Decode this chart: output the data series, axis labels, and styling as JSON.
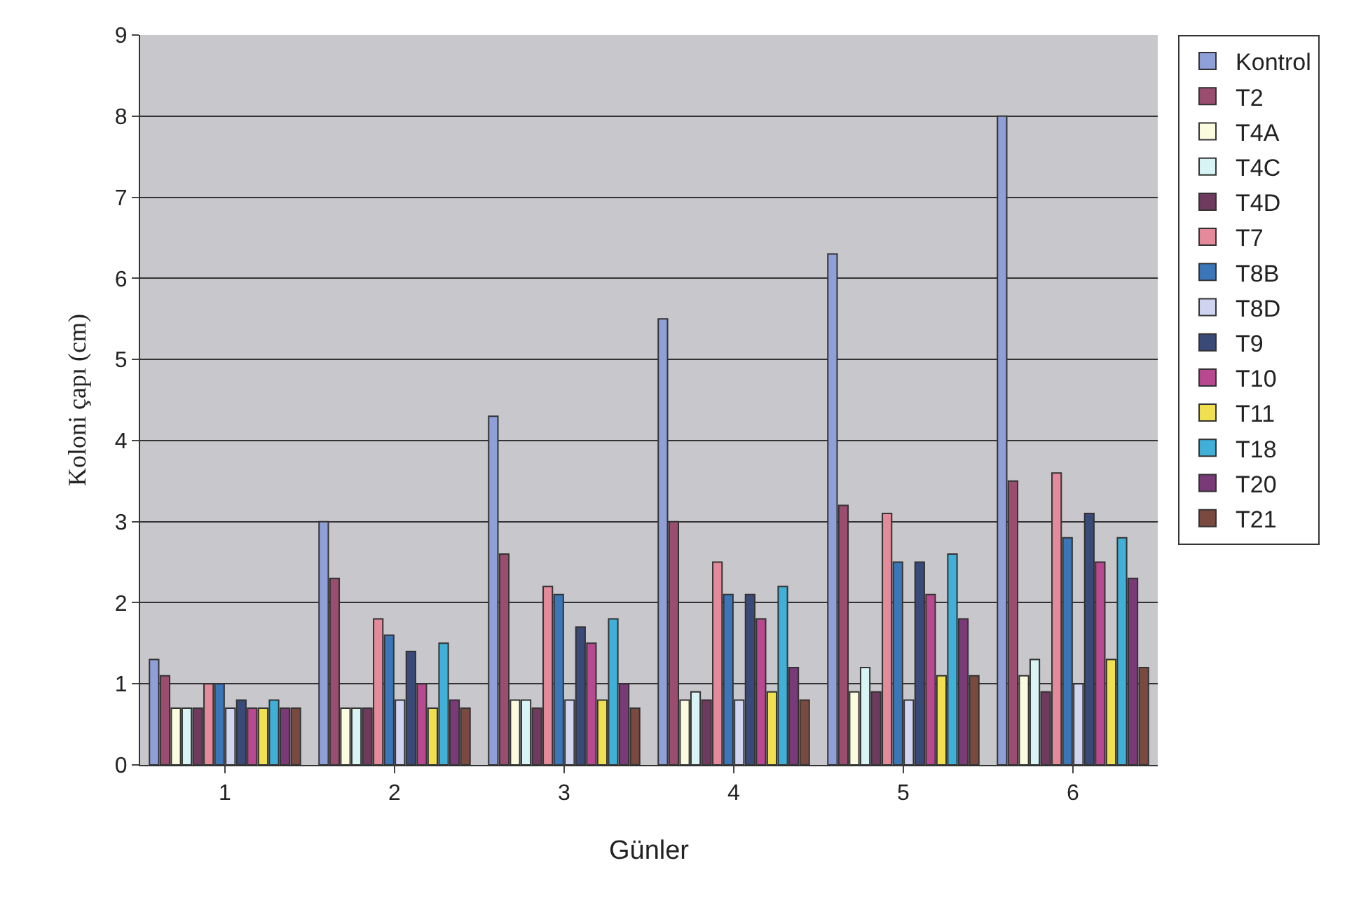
{
  "chart_data": {
    "type": "bar",
    "xlabel": "Günler",
    "ylabel": "Koloni çapı (cm)",
    "categories": [
      "1",
      "2",
      "3",
      "4",
      "5",
      "6"
    ],
    "ylim": [
      0,
      9
    ],
    "yticks": [
      0,
      1,
      2,
      3,
      4,
      5,
      6,
      7,
      8,
      9
    ],
    "grid": "y",
    "legend": "right",
    "series": [
      {
        "name": "Kontrol",
        "color": "#8f9fd8",
        "values": [
          1.3,
          3.0,
          4.3,
          5.5,
          6.3,
          8.0
        ]
      },
      {
        "name": "T2",
        "color": "#9a4d6e",
        "values": [
          1.1,
          2.3,
          2.6,
          3.0,
          3.2,
          3.5
        ]
      },
      {
        "name": "T4A",
        "color": "#fbfbe0",
        "values": [
          0.7,
          0.7,
          0.8,
          0.8,
          0.9,
          1.1
        ]
      },
      {
        "name": "T4C",
        "color": "#d8f4f4",
        "values": [
          0.7,
          0.7,
          0.8,
          0.9,
          1.2,
          1.3
        ]
      },
      {
        "name": "T4D",
        "color": "#6e3a5e",
        "values": [
          0.7,
          0.7,
          0.7,
          0.8,
          0.9,
          0.9
        ]
      },
      {
        "name": "T7",
        "color": "#e48a9a",
        "values": [
          1.0,
          1.8,
          2.2,
          2.5,
          3.1,
          3.6
        ]
      },
      {
        "name": "T8B",
        "color": "#3a76b8",
        "values": [
          1.0,
          1.6,
          2.1,
          2.1,
          2.5,
          2.8
        ]
      },
      {
        "name": "T8D",
        "color": "#d0d4f0",
        "values": [
          0.7,
          0.8,
          0.8,
          0.8,
          0.8,
          1.0
        ]
      },
      {
        "name": "T9",
        "color": "#3a4a78",
        "values": [
          0.8,
          1.4,
          1.7,
          2.1,
          2.5,
          3.1
        ]
      },
      {
        "name": "T10",
        "color": "#b84890",
        "values": [
          0.7,
          1.0,
          1.5,
          1.8,
          2.1,
          2.5
        ]
      },
      {
        "name": "T11",
        "color": "#f0e050",
        "values": [
          0.7,
          0.7,
          0.8,
          0.9,
          1.1,
          1.3
        ]
      },
      {
        "name": "T18",
        "color": "#40b0d8",
        "values": [
          0.8,
          1.5,
          1.8,
          2.2,
          2.6,
          2.8
        ]
      },
      {
        "name": "T20",
        "color": "#7a3a78",
        "values": [
          0.7,
          0.8,
          1.0,
          1.2,
          1.8,
          2.3
        ]
      },
      {
        "name": "T21",
        "color": "#7a4a40",
        "values": [
          0.7,
          0.7,
          0.7,
          0.8,
          1.1,
          1.2
        ]
      }
    ]
  }
}
